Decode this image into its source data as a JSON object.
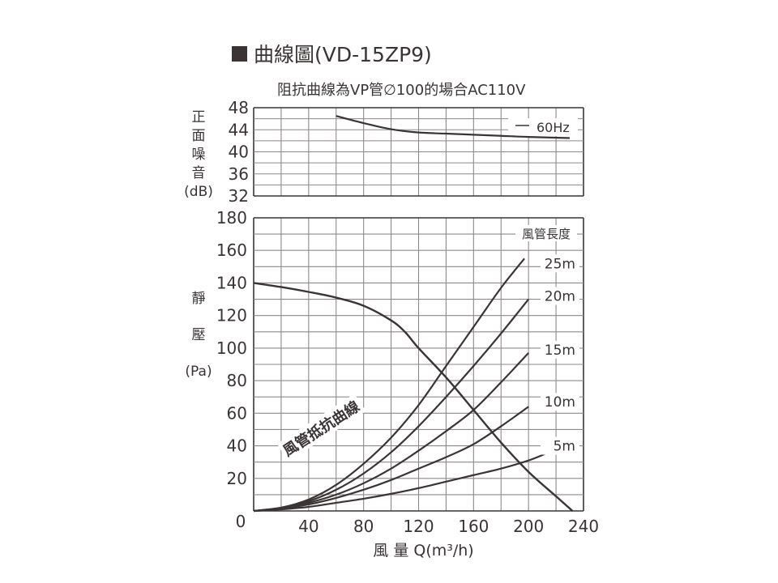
{
  "title": "曲線圖(VD-15ZP9)",
  "subtitle": "阻抗曲線為VP管∅100的場合AC110V",
  "chart_data": [
    {
      "type": "line",
      "panel": "noise",
      "ylabel_chars": [
        "正",
        "面",
        "噪",
        "音"
      ],
      "yunit": "(dB)",
      "ylim": [
        32,
        48
      ],
      "yticks": [
        32,
        36,
        40,
        44,
        48
      ],
      "xlim": [
        0,
        240
      ],
      "grid": true,
      "legend": "60Hz",
      "legend_position": "top-right",
      "series": [
        {
          "name": "60Hz",
          "x": [
            60,
            80,
            100,
            120,
            140,
            160,
            180,
            200,
            230
          ],
          "y": [
            46.5,
            45.2,
            44.1,
            43.5,
            43.3,
            43.1,
            42.9,
            42.7,
            42.5
          ]
        }
      ]
    },
    {
      "type": "line",
      "panel": "static-pressure",
      "ylabel_chars": [
        "靜",
        "壓"
      ],
      "yunit": "(Pa)",
      "ylim": [
        0,
        180
      ],
      "yticks": [
        0,
        20,
        40,
        60,
        80,
        100,
        120,
        140,
        160,
        180
      ],
      "xlim": [
        0,
        240
      ],
      "xticks": [
        40,
        80,
        120,
        160,
        200,
        240
      ],
      "x_origin_label": "0",
      "xlabel": "風  量 Q(m³/h)",
      "grid": true,
      "fan_curve": {
        "x": [
          0,
          20,
          40,
          60,
          80,
          100,
          110,
          120,
          140,
          160,
          180,
          200,
          220,
          232
        ],
        "y": [
          140,
          137.5,
          134.5,
          131,
          126,
          117,
          110,
          100,
          82,
          62,
          42,
          24,
          9,
          0
        ]
      },
      "duct_curve_label": "風管抵抗曲線",
      "duct_legend_title": "風管長度",
      "duct_curves": [
        {
          "name": "25m",
          "x": [
            0,
            20,
            40,
            60,
            80,
            100,
            120,
            140,
            160,
            180,
            197
          ],
          "y": [
            0,
            2,
            7,
            16,
            29,
            45,
            65,
            89,
            113,
            137,
            155
          ]
        },
        {
          "name": "20m",
          "x": [
            0,
            20,
            40,
            60,
            80,
            100,
            120,
            140,
            160,
            180,
            200
          ],
          "y": [
            0,
            2,
            6,
            13,
            23,
            36,
            52,
            70,
            89,
            109,
            130
          ]
        },
        {
          "name": "15m",
          "x": [
            0,
            20,
            40,
            60,
            80,
            100,
            120,
            140,
            160,
            180,
            200
          ],
          "y": [
            0,
            1.5,
            5,
            10,
            17,
            26,
            37,
            49,
            62,
            79,
            97
          ]
        },
        {
          "name": "10m",
          "x": [
            0,
            20,
            40,
            60,
            80,
            100,
            120,
            140,
            160,
            180,
            200
          ],
          "y": [
            0,
            1.5,
            4,
            8,
            13,
            19,
            26,
            33,
            41,
            52,
            64
          ]
        },
        {
          "name": "5m",
          "x": [
            0,
            20,
            40,
            60,
            80,
            100,
            120,
            140,
            160,
            180,
            200,
            212
          ],
          "y": [
            0,
            1,
            2.5,
            5,
            7.5,
            10.5,
            14,
            18,
            22,
            26,
            31,
            35
          ]
        }
      ]
    }
  ]
}
